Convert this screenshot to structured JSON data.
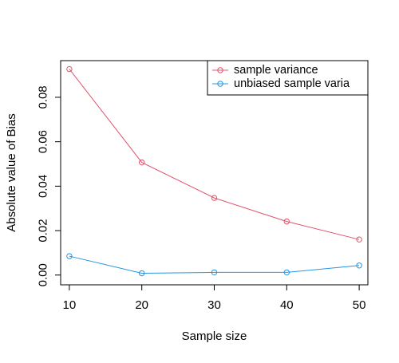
{
  "chart_data": {
    "type": "line",
    "title": "",
    "xlabel": "Sample size",
    "ylabel": "Absolute value of Bias",
    "x": [
      10,
      20,
      30,
      40,
      50
    ],
    "xticks": [
      "10",
      "20",
      "30",
      "40",
      "50"
    ],
    "yticks": [
      "0.00",
      "0.02",
      "0.04",
      "0.06",
      "0.08"
    ],
    "xlim": [
      8.8,
      51.2
    ],
    "ylim": [
      -0.0044,
      0.0965
    ],
    "grid": false,
    "legend_position": "top-right",
    "series": [
      {
        "name": "sample variance",
        "color": "#DF536B",
        "values": [
          0.0927,
          0.0507,
          0.0347,
          0.0241,
          0.016
        ]
      },
      {
        "name": "unbiased sample varia",
        "color": "#2297E6",
        "values": [
          0.0085,
          0.0008,
          0.0012,
          0.0012,
          0.0043
        ]
      }
    ]
  }
}
